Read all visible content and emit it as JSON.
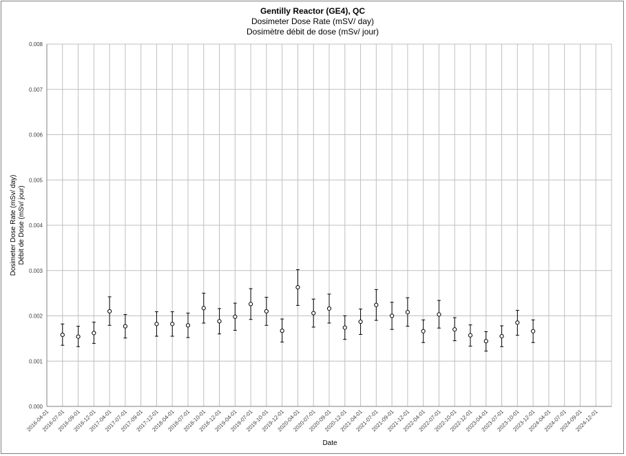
{
  "chart_data": {
    "type": "scatter",
    "title": "Gentilly Reactor (GE4), QC",
    "subtitle_lines": [
      "Dosimeter Dose Rate (mSV/ day)",
      "Dosimètre débit de dose (mSv/ jour)"
    ],
    "xlabel": "Date",
    "ylabel_lines": [
      "Dosimeter Dose Rate (mSv/ day)",
      "Débit de Dose (mSv/ jour)"
    ],
    "ylim": [
      0,
      0.008
    ],
    "y_ticks": [
      "0.000",
      "0.001",
      "0.002",
      "0.003",
      "0.004",
      "0.005",
      "0.006",
      "0.007",
      "0.008"
    ],
    "x_ticks": [
      "2016-04-01",
      "2016-07-01",
      "2016-09-01",
      "2016-12-01",
      "2017-04-01",
      "2017-07-01",
      "2017-09-01",
      "2017-12-01",
      "2018-04-01",
      "2018-07-01",
      "2018-10-01",
      "2018-12-01",
      "2019-04-01",
      "2019-07-01",
      "2019-10-01",
      "2019-12-01",
      "2020-04-01",
      "2020-07-01",
      "2020-09-01",
      "2020-12-01",
      "2021-04-01",
      "2021-07-01",
      "2021-09-01",
      "2021-12-01",
      "2022-04-01",
      "2022-07-01",
      "2022-10-01",
      "2022-12-01",
      "2023-04-01",
      "2023-07-01",
      "2023-10-01",
      "2023-12-01",
      "2024-04-01",
      "2024-07-01",
      "2024-09-01",
      "2024-12-01"
    ],
    "grid": true,
    "series": [
      {
        "points": [
          {
            "x": "2016-07-01",
            "y": 0.00158,
            "err_low": 0.00135,
            "err_high": 0.00182
          },
          {
            "x": "2016-09-01",
            "y": 0.00154,
            "err_low": 0.00132,
            "err_high": 0.00177
          },
          {
            "x": "2016-12-01",
            "y": 0.00162,
            "err_low": 0.00139,
            "err_high": 0.00186
          },
          {
            "x": "2017-04-01",
            "y": 0.0021,
            "err_low": 0.00179,
            "err_high": 0.00242
          },
          {
            "x": "2017-07-01",
            "y": 0.00177,
            "err_low": 0.00151,
            "err_high": 0.00203
          },
          {
            "x": "2017-12-01",
            "y": 0.00182,
            "err_low": 0.00155,
            "err_high": 0.00209
          },
          {
            "x": "2018-04-01",
            "y": 0.00182,
            "err_low": 0.00155,
            "err_high": 0.00209
          },
          {
            "x": "2018-07-01",
            "y": 0.00179,
            "err_low": 0.00152,
            "err_high": 0.00206
          },
          {
            "x": "2018-10-01",
            "y": 0.00217,
            "err_low": 0.00184,
            "err_high": 0.0025
          },
          {
            "x": "2018-12-01",
            "y": 0.00188,
            "err_low": 0.0016,
            "err_high": 0.00216
          },
          {
            "x": "2019-04-01",
            "y": 0.00198,
            "err_low": 0.00168,
            "err_high": 0.00228
          },
          {
            "x": "2019-07-01",
            "y": 0.00226,
            "err_low": 0.00192,
            "err_high": 0.0026
          },
          {
            "x": "2019-10-01",
            "y": 0.0021,
            "err_low": 0.00179,
            "err_high": 0.00241
          },
          {
            "x": "2019-12-01",
            "y": 0.00167,
            "err_low": 0.00142,
            "err_high": 0.00193
          },
          {
            "x": "2020-04-01",
            "y": 0.00263,
            "err_low": 0.00223,
            "err_high": 0.00302
          },
          {
            "x": "2020-07-01",
            "y": 0.00206,
            "err_low": 0.00175,
            "err_high": 0.00237
          },
          {
            "x": "2020-09-01",
            "y": 0.00216,
            "err_low": 0.00184,
            "err_high": 0.00248
          },
          {
            "x": "2020-12-01",
            "y": 0.00174,
            "err_low": 0.00148,
            "err_high": 0.002
          },
          {
            "x": "2021-04-01",
            "y": 0.00187,
            "err_low": 0.00159,
            "err_high": 0.00215
          },
          {
            "x": "2021-07-01",
            "y": 0.00224,
            "err_low": 0.0019,
            "err_high": 0.00258
          },
          {
            "x": "2021-09-01",
            "y": 0.002,
            "err_low": 0.0017,
            "err_high": 0.0023
          },
          {
            "x": "2021-12-01",
            "y": 0.00208,
            "err_low": 0.00177,
            "err_high": 0.0024
          },
          {
            "x": "2022-04-01",
            "y": 0.00166,
            "err_low": 0.00141,
            "err_high": 0.00191
          },
          {
            "x": "2022-07-01",
            "y": 0.00203,
            "err_low": 0.00173,
            "err_high": 0.00234
          },
          {
            "x": "2022-10-01",
            "y": 0.0017,
            "err_low": 0.00145,
            "err_high": 0.00196
          },
          {
            "x": "2022-12-01",
            "y": 0.00157,
            "err_low": 0.00133,
            "err_high": 0.0018
          },
          {
            "x": "2023-04-01",
            "y": 0.00144,
            "err_low": 0.00122,
            "err_high": 0.00165
          },
          {
            "x": "2023-07-01",
            "y": 0.00155,
            "err_low": 0.00132,
            "err_high": 0.00178
          },
          {
            "x": "2023-10-01",
            "y": 0.00185,
            "err_low": 0.00157,
            "err_high": 0.00212
          },
          {
            "x": "2023-12-01",
            "y": 0.00166,
            "err_low": 0.00141,
            "err_high": 0.00191
          }
        ]
      }
    ]
  }
}
